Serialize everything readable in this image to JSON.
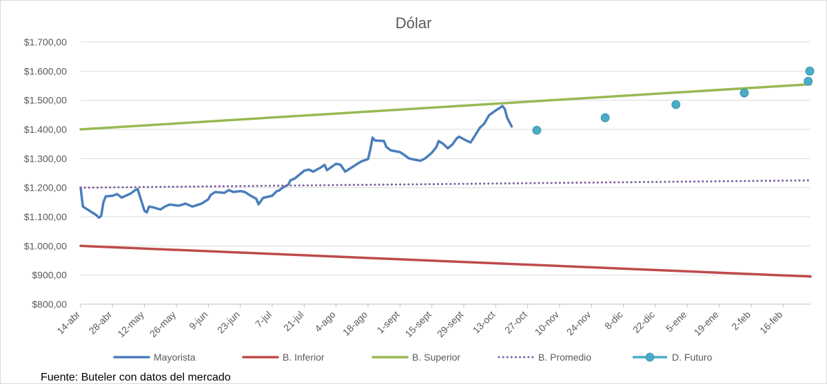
{
  "source_note": "Fuente: Buteler con datos del mercado",
  "chart_data": {
    "type": "line",
    "title": "Dólar",
    "xlabel": "",
    "ylabel": "",
    "ylim": [
      800,
      1700
    ],
    "y_ticks": [
      800,
      900,
      1000,
      1100,
      1200,
      1300,
      1400,
      1500,
      1600,
      1700
    ],
    "y_tick_labels": [
      "$800,00",
      "$900,00",
      "$1.000,00",
      "$1.100,00",
      "$1.200,00",
      "$1.300,00",
      "$1.400,00",
      "$1.500,00",
      "$1.600,00",
      "$1.700,00"
    ],
    "x_range": [
      "2025-04-14",
      "2026-02-28"
    ],
    "x_ticks": [
      "2025-04-14",
      "2025-04-28",
      "2025-05-12",
      "2025-05-26",
      "2025-06-09",
      "2025-06-23",
      "2025-07-07",
      "2025-07-21",
      "2025-08-04",
      "2025-08-18",
      "2025-09-01",
      "2025-09-15",
      "2025-09-29",
      "2025-10-13",
      "2025-10-27",
      "2025-11-10",
      "2025-11-24",
      "2025-12-08",
      "2025-12-22",
      "2026-01-05",
      "2026-01-19",
      "2026-02-02",
      "2026-02-16"
    ],
    "x_tick_labels": [
      "14-abr",
      "28-abr",
      "12-may",
      "26-may",
      "9-jun",
      "23-jun",
      "7-jul",
      "21-jul",
      "4-ago",
      "18-ago",
      "1-sept",
      "15-sept",
      "29-sept",
      "13-oct",
      "27-oct",
      "10-nov",
      "24-nov",
      "8-dic",
      "22-dic",
      "5-ene",
      "19-ene",
      "2-feb",
      "16-feb"
    ],
    "grid": true,
    "legend_position": "bottom",
    "series": [
      {
        "name": "Mayorista",
        "color": "#4a7ebb",
        "style": "solid",
        "points": [
          [
            "2025-04-14",
            1200
          ],
          [
            "2025-04-15",
            1135
          ],
          [
            "2025-04-17",
            1125
          ],
          [
            "2025-04-21",
            1105
          ],
          [
            "2025-04-22",
            1097
          ],
          [
            "2025-04-23",
            1103
          ],
          [
            "2025-04-24",
            1150
          ],
          [
            "2025-04-25",
            1170
          ],
          [
            "2025-04-28",
            1172
          ],
          [
            "2025-04-30",
            1178
          ],
          [
            "2025-05-02",
            1166
          ],
          [
            "2025-05-06",
            1180
          ],
          [
            "2025-05-08",
            1192
          ],
          [
            "2025-05-09",
            1195
          ],
          [
            "2025-05-12",
            1120
          ],
          [
            "2025-05-13",
            1115
          ],
          [
            "2025-05-14",
            1135
          ],
          [
            "2025-05-16",
            1132
          ],
          [
            "2025-05-19",
            1125
          ],
          [
            "2025-05-21",
            1135
          ],
          [
            "2025-05-23",
            1142
          ],
          [
            "2025-05-27",
            1138
          ],
          [
            "2025-05-30",
            1145
          ],
          [
            "2025-06-02",
            1135
          ],
          [
            "2025-06-04",
            1140
          ],
          [
            "2025-06-06",
            1145
          ],
          [
            "2025-06-09",
            1160
          ],
          [
            "2025-06-10",
            1175
          ],
          [
            "2025-06-12",
            1185
          ],
          [
            "2025-06-16",
            1182
          ],
          [
            "2025-06-18",
            1192
          ],
          [
            "2025-06-20",
            1185
          ],
          [
            "2025-06-23",
            1188
          ],
          [
            "2025-06-25",
            1185
          ],
          [
            "2025-06-27",
            1175
          ],
          [
            "2025-06-30",
            1162
          ],
          [
            "2025-07-01",
            1143
          ],
          [
            "2025-07-03",
            1165
          ],
          [
            "2025-07-07",
            1172
          ],
          [
            "2025-07-08",
            1180
          ],
          [
            "2025-07-09",
            1188
          ],
          [
            "2025-07-10",
            1190
          ],
          [
            "2025-07-11",
            1197
          ],
          [
            "2025-07-14",
            1210
          ],
          [
            "2025-07-15",
            1225
          ],
          [
            "2025-07-17",
            1232
          ],
          [
            "2025-07-21",
            1258
          ],
          [
            "2025-07-23",
            1262
          ],
          [
            "2025-07-25",
            1255
          ],
          [
            "2025-07-28",
            1268
          ],
          [
            "2025-07-30",
            1278
          ],
          [
            "2025-07-31",
            1260
          ],
          [
            "2025-08-04",
            1282
          ],
          [
            "2025-08-06",
            1278
          ],
          [
            "2025-08-08",
            1255
          ],
          [
            "2025-08-11",
            1270
          ],
          [
            "2025-08-13",
            1280
          ],
          [
            "2025-08-15",
            1290
          ],
          [
            "2025-08-18",
            1298
          ],
          [
            "2025-08-19",
            1330
          ],
          [
            "2025-08-20",
            1372
          ],
          [
            "2025-08-21",
            1362
          ],
          [
            "2025-08-25",
            1360
          ],
          [
            "2025-08-26",
            1340
          ],
          [
            "2025-08-28",
            1328
          ],
          [
            "2025-09-01",
            1322
          ],
          [
            "2025-09-03",
            1312
          ],
          [
            "2025-09-05",
            1300
          ],
          [
            "2025-09-08",
            1295
          ],
          [
            "2025-09-10",
            1292
          ],
          [
            "2025-09-12",
            1300
          ],
          [
            "2025-09-15",
            1320
          ],
          [
            "2025-09-17",
            1340
          ],
          [
            "2025-09-18",
            1360
          ],
          [
            "2025-09-20",
            1350
          ],
          [
            "2025-09-22",
            1335
          ],
          [
            "2025-09-24",
            1348
          ],
          [
            "2025-09-26",
            1370
          ],
          [
            "2025-09-27",
            1375
          ],
          [
            "2025-09-30",
            1362
          ],
          [
            "2025-10-02",
            1355
          ],
          [
            "2025-10-04",
            1380
          ],
          [
            "2025-10-06",
            1405
          ],
          [
            "2025-10-08",
            1420
          ],
          [
            "2025-10-10",
            1448
          ],
          [
            "2025-10-13",
            1465
          ],
          [
            "2025-10-15",
            1475
          ],
          [
            "2025-10-16",
            1480
          ],
          [
            "2025-10-17",
            1470
          ],
          [
            "2025-10-18",
            1440
          ],
          [
            "2025-10-20",
            1410
          ]
        ]
      },
      {
        "name": "B. Inferior",
        "color": "#be4b48",
        "style": "solid",
        "points": [
          [
            "2025-04-14",
            1000
          ],
          [
            "2026-02-28",
            895
          ]
        ]
      },
      {
        "name": "B. Superior",
        "color": "#98b954",
        "style": "solid",
        "points": [
          [
            "2025-04-14",
            1400
          ],
          [
            "2026-02-28",
            1555
          ]
        ]
      },
      {
        "name": "B. Promedio",
        "color": "#7d60a0",
        "style": "dotted",
        "points": [
          [
            "2025-04-14",
            1200
          ],
          [
            "2026-02-28",
            1225
          ]
        ]
      },
      {
        "name": "D. Futuro",
        "color": "#4bacc6",
        "style": "markers",
        "points": [
          [
            "2025-10-31",
            1397
          ],
          [
            "2025-11-30",
            1440
          ],
          [
            "2025-12-31",
            1485
          ],
          [
            "2026-01-30",
            1525
          ],
          [
            "2026-02-27",
            1565
          ],
          [
            "2026-03-31",
            1600
          ]
        ]
      }
    ]
  }
}
